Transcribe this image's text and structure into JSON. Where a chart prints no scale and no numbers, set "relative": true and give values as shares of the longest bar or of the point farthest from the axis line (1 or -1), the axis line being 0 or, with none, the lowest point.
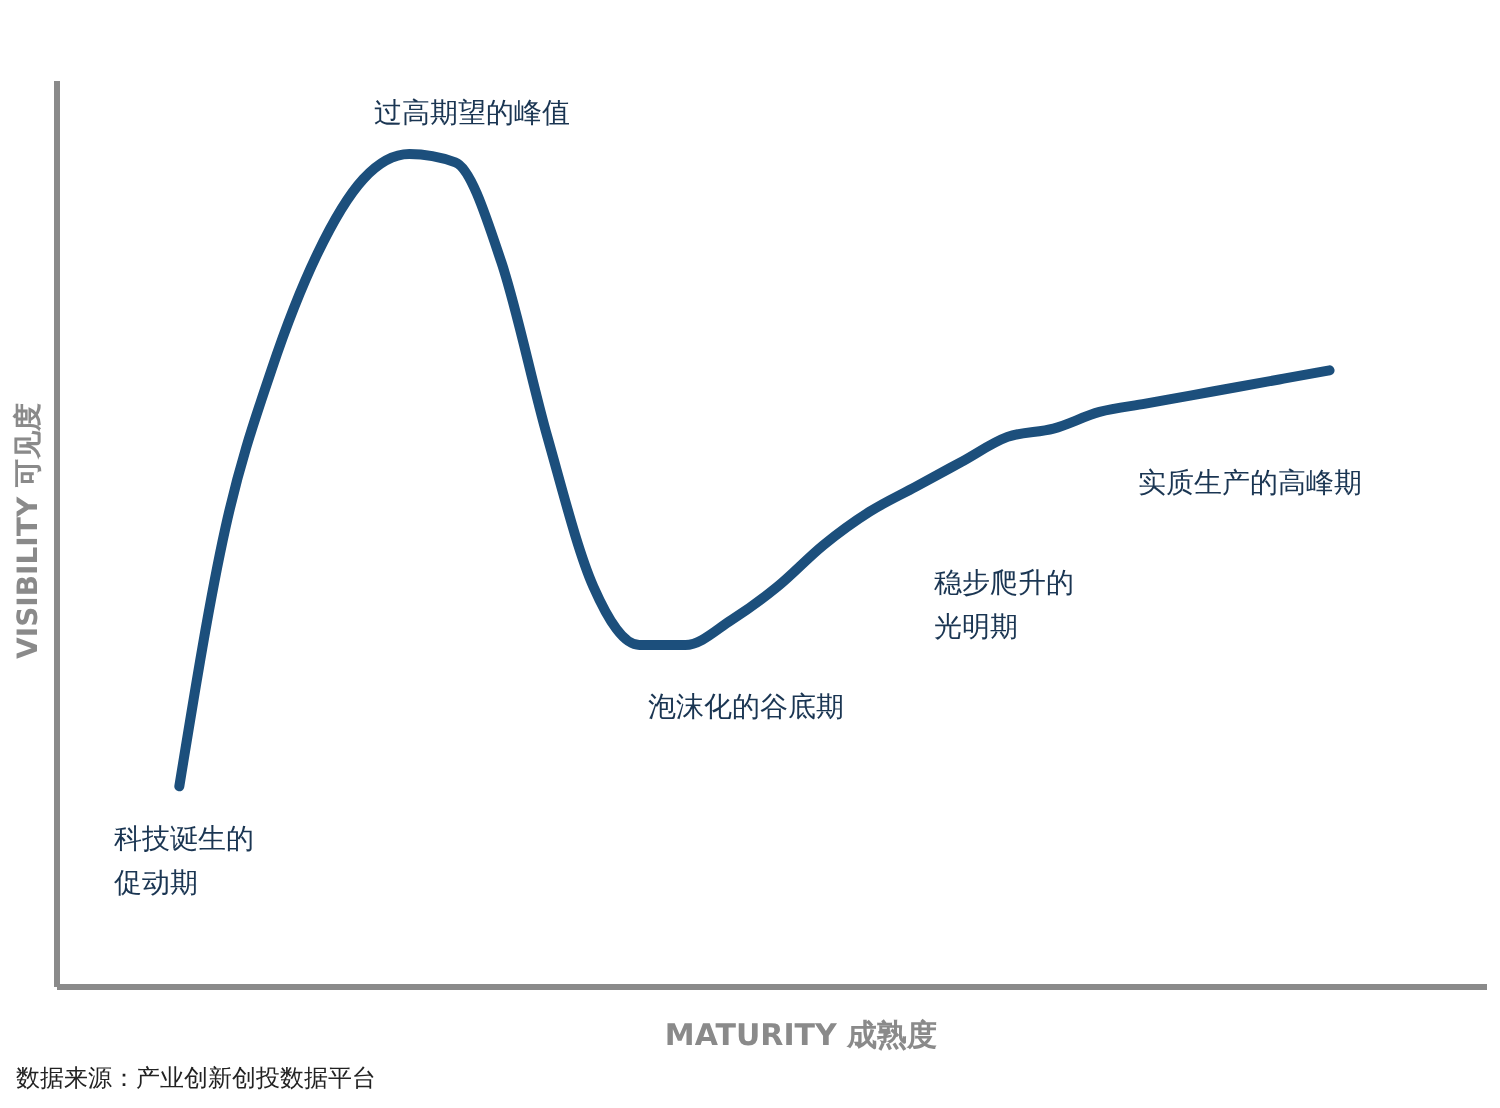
{
  "chart_data": {
    "type": "line",
    "relative": true,
    "xlabel": "MATURITY 成熟度",
    "ylabel": "VISIBILITY 可见度",
    "categories": [
      null,
      null,
      null,
      null,
      null,
      null,
      null,
      null,
      null,
      null,
      null,
      null,
      null,
      null,
      null,
      null,
      null,
      null,
      null,
      null,
      null,
      null,
      null,
      null,
      null,
      null
    ],
    "series": [
      {
        "color": "#1c4f7c",
        "values": [
          0.24,
          0.55,
          0.74,
          0.88,
          0.97,
          1,
          0.99,
          0.87,
          0.66,
          0.48,
          0.41,
          0.41,
          0.44,
          0.48,
          0.53,
          0.57,
          0.6,
          0.63,
          0.66,
          0.67,
          0.69,
          0.7,
          0.71,
          0.72,
          0.73,
          0.74
        ]
      }
    ],
    "annotations": [
      "过高期望的峰值",
      "泡沫化的谷底期",
      "稳步爬升的光明期",
      "实质生产的高峰期",
      "科技诞生的促动期",
      "数据来源：产业创新创投数据平台"
    ],
    "legend": false,
    "marker": "none",
    "line_style": "solid"
  }
}
